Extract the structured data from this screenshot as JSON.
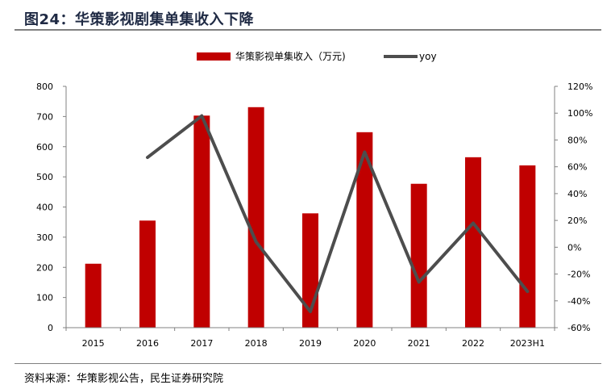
{
  "figure_title": "图24：华策影视剧集单集收入下降",
  "source_note": "资料来源：华策影视公告，民生证券研究院",
  "colors": {
    "bar": "#c00000",
    "line": "#4d4d4d",
    "axis": "#808080",
    "title": "#1f2a44"
  },
  "chart_data": {
    "type": "bar",
    "categories": [
      "2015",
      "2016",
      "2017",
      "2018",
      "2019",
      "2020",
      "2021",
      "2022",
      "2023H1"
    ],
    "series": [
      {
        "name": "华策影视单集收入（万元)",
        "type": "bar",
        "axis": "left",
        "values": [
          212,
          355,
          703,
          731,
          379,
          648,
          477,
          565,
          538
        ]
      },
      {
        "name": "yoy",
        "type": "line",
        "axis": "right",
        "values": [
          null,
          67,
          98,
          4,
          -48,
          71,
          -26,
          18,
          -33
        ]
      }
    ],
    "ylim_left": [
      0,
      800
    ],
    "yticks_left": [
      0,
      100,
      200,
      300,
      400,
      500,
      600,
      700,
      800
    ],
    "ylim_right": [
      -60,
      120
    ],
    "yticks_right": [
      "-60%",
      "-40%",
      "-20%",
      "0%",
      "20%",
      "40%",
      "60%",
      "80%",
      "100%",
      "120%"
    ],
    "legend_position": "top-center",
    "grid": false
  }
}
